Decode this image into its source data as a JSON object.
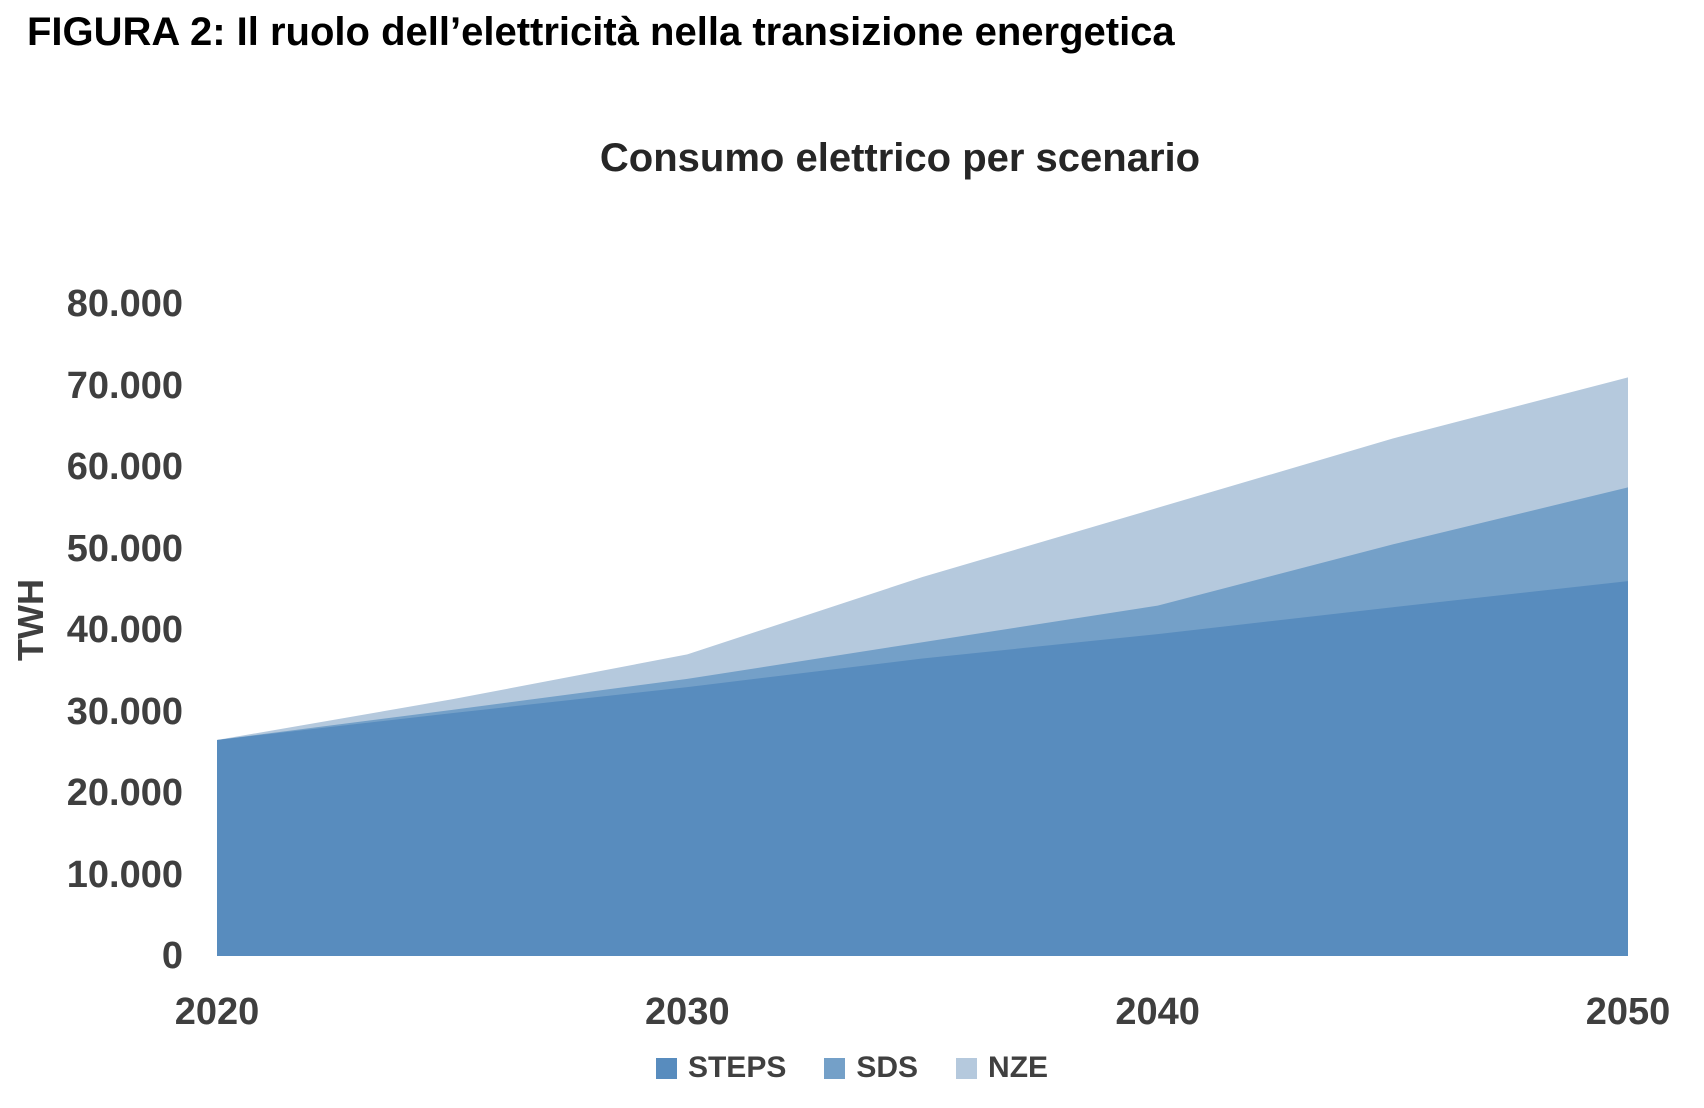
{
  "figure_title": "FIGURA 2: Il ruolo dell’elettricità nella transizione energetica",
  "chart": {
    "title": "Consumo elettrico per scenario",
    "y_axis_title": "TWH"
  },
  "chart_data": {
    "type": "area",
    "title": "Consumo elettrico per scenario",
    "xlabel": "",
    "ylabel": "TWH",
    "stacked": false,
    "grid": false,
    "legend_position": "bottom",
    "xlim": [
      2020,
      2050
    ],
    "ylim": [
      0,
      80000
    ],
    "x": [
      2020,
      2025,
      2030,
      2035,
      2040,
      2045,
      2050
    ],
    "x_tick_values": [
      2020,
      2030,
      2040,
      2050
    ],
    "x_tick_labels": [
      "2020",
      "2030",
      "2040",
      "2050"
    ],
    "y_tick_values": [
      0,
      10000,
      20000,
      30000,
      40000,
      50000,
      60000,
      70000,
      80000
    ],
    "y_tick_labels": [
      "0",
      "10.000",
      "20.000",
      "30.000",
      "40.000",
      "50.000",
      "60.000",
      "70.000",
      "80.000"
    ],
    "series": [
      {
        "name": "STEPS",
        "color": "#588cbe",
        "values": [
          26500,
          29800,
          33000,
          36500,
          39500,
          42800,
          46000
        ]
      },
      {
        "name": "SDS",
        "color": "#74a0c8",
        "values": [
          26500,
          30200,
          34000,
          38500,
          43000,
          50500,
          57500
        ]
      },
      {
        "name": "NZE",
        "color": "#b5c9dd",
        "values": [
          26500,
          31500,
          37000,
          46500,
          55000,
          63500,
          71000
        ]
      }
    ],
    "text_color": "#3f3f3f"
  }
}
